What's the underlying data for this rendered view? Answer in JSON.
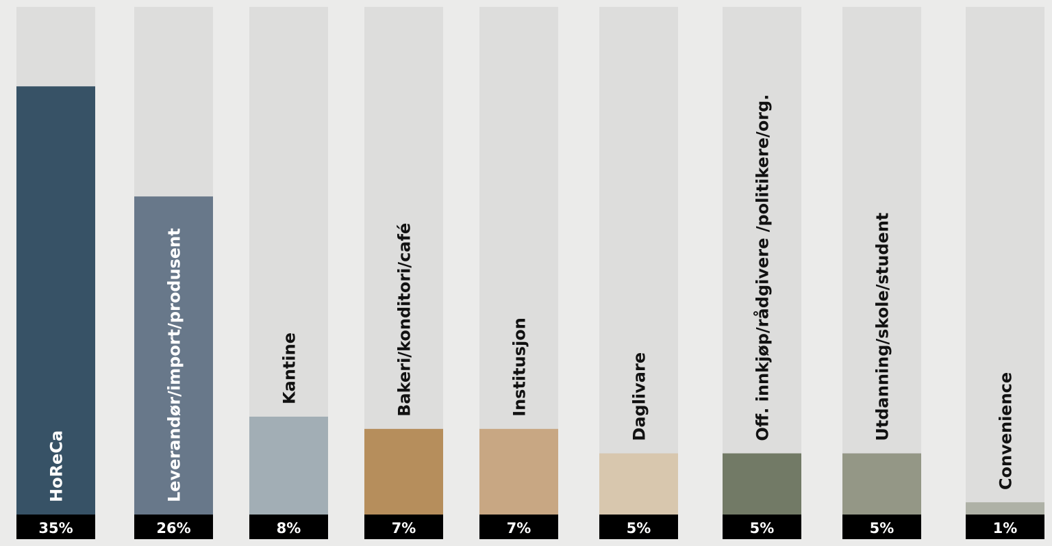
{
  "chart_data": {
    "type": "bar",
    "title": "",
    "xlabel": "",
    "ylabel": "",
    "ylim": [
      0,
      41.5
    ],
    "grid": false,
    "legend": "none",
    "categories": [
      "HoReCa",
      "Leverandør/import/produsent",
      "Kantine",
      "Bakeri/konditori/café",
      "Institusjon",
      "Daglivare",
      "Off. innkjøp/rådgivere /politikere/org.",
      "Utdanning/skole/student",
      "Convenience"
    ],
    "values": [
      35,
      26,
      8,
      7,
      7,
      5,
      5,
      5,
      1
    ],
    "value_labels": [
      "35%",
      "26%",
      "8%",
      "7%",
      "7%",
      "5%",
      "5%",
      "5%",
      "1%"
    ],
    "colors": [
      "#375266",
      "#68788a",
      "#a2aeb5",
      "#b68e5c",
      "#c8a783",
      "#d8c7ae",
      "#727a66",
      "#949786",
      "#aeb1a6"
    ],
    "track_color": "#dddddc",
    "background_color": "#ebebea",
    "value_label_bg": "#000000",
    "value_label_color": "#ffffff",
    "category_label_color_dark": "#ffffff",
    "category_label_color_light": "#111111"
  }
}
